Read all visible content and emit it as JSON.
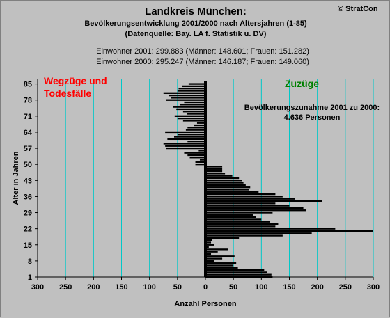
{
  "header": {
    "title": "Landkreis München:",
    "subtitle_line1": "Bevölkerungsentwicklung 2001/2000  nach Altersjahren (1-85)",
    "subtitle_line2": "(Datenquelle: Bay. LA f. Statistik u. DV)",
    "copyright": "© StratCon",
    "info_2001": "Einwohner 2001: 299.883  (Männer: 148.601; Frauen: 151.282)",
    "info_2000": "Einwohner 2000: 295.247  (Männer: 146.187; Frauen: 149.060)"
  },
  "colors": {
    "background": "#c0c0c0",
    "plot_background": "#c0c0c0",
    "gridline": "#00c8c8",
    "bar": "#000000",
    "left_label": "#ff0000",
    "right_label": "#008000"
  },
  "chart_data": {
    "type": "bar",
    "orientation": "horizontal-diverging",
    "xlabel": "Anzahl Personen",
    "ylabel": "Alter in Jahren",
    "xlim": [
      -300,
      300
    ],
    "ylim": [
      1,
      87
    ],
    "x_ticks": [
      -300,
      -250,
      -200,
      -150,
      -100,
      -50,
      0,
      50,
      100,
      150,
      200,
      250,
      300
    ],
    "x_tick_labels": [
      "300",
      "250",
      "200",
      "150",
      "100",
      "50",
      "0",
      "50",
      "100",
      "150",
      "200",
      "250",
      "300"
    ],
    "y_ticks": [
      1,
      8,
      15,
      22,
      29,
      36,
      43,
      50,
      57,
      64,
      71,
      78,
      85
    ],
    "grid": true,
    "left_label": "Wegzüge und Todesfälle",
    "right_label": "Zuzüge",
    "annotation_line1": "Bevölkerungszunahme 2001 zu 2000:",
    "annotation_line2": "4.636 Personen",
    "ages": [
      1,
      2,
      3,
      4,
      5,
      6,
      7,
      8,
      9,
      10,
      11,
      12,
      13,
      14,
      15,
      16,
      17,
      18,
      19,
      20,
      21,
      22,
      23,
      24,
      25,
      26,
      27,
      28,
      29,
      30,
      31,
      32,
      33,
      34,
      35,
      36,
      37,
      38,
      39,
      40,
      41,
      42,
      43,
      44,
      45,
      46,
      47,
      48,
      49,
      50,
      51,
      52,
      53,
      54,
      55,
      56,
      57,
      58,
      59,
      60,
      61,
      62,
      63,
      64,
      65,
      66,
      67,
      68,
      69,
      70,
      71,
      72,
      73,
      74,
      75,
      76,
      77,
      78,
      79,
      80,
      81,
      82,
      83,
      84,
      85
    ],
    "values": [
      120,
      118,
      110,
      105,
      58,
      50,
      55,
      15,
      30,
      52,
      10,
      22,
      40,
      6,
      15,
      10,
      12,
      60,
      138,
      190,
      300,
      232,
      125,
      130,
      115,
      100,
      90,
      85,
      120,
      180,
      175,
      150,
      125,
      208,
      160,
      138,
      125,
      95,
      78,
      80,
      72,
      68,
      65,
      60,
      48,
      35,
      30,
      30,
      30,
      -18,
      -18,
      -10,
      -28,
      -32,
      -38,
      -12,
      -70,
      -72,
      -75,
      -32,
      -68,
      -56,
      -50,
      -72,
      -35,
      -32,
      -20,
      -15,
      -40,
      -50,
      -55,
      -33,
      -40,
      -52,
      -58,
      -45,
      -38,
      -70,
      -62,
      -65,
      -75,
      -50,
      -48,
      -42,
      -30
    ]
  }
}
